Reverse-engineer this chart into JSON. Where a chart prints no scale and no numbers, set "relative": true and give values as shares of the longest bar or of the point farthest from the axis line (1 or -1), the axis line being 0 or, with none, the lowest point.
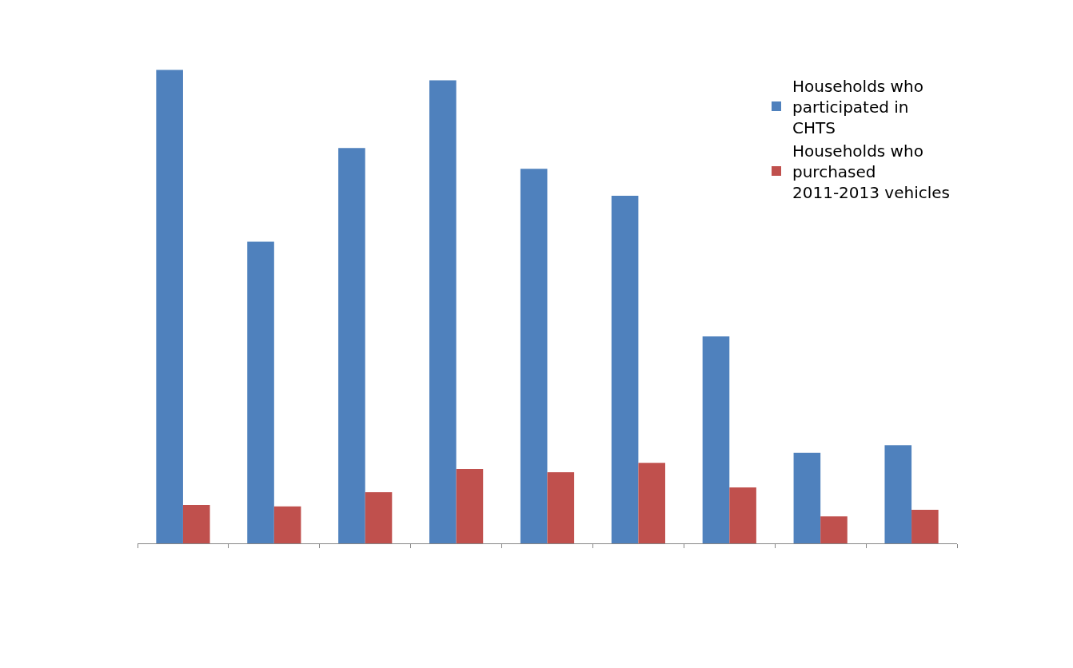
{
  "chart_data": {
    "type": "bar",
    "relative": true,
    "categories": [
      null,
      null,
      null,
      null,
      null,
      null,
      null,
      null,
      null
    ],
    "series": [
      {
        "name": "Households who participated in CHTS",
        "color": "#4f81bd",
        "values": [
          1,
          0.637,
          0.835,
          0.978,
          0.791,
          0.734,
          0.437,
          0.191,
          0.207
        ]
      },
      {
        "name": "Households who purchased 2011-2013 vehicles",
        "color": "#c0504d",
        "values": [
          0.081,
          0.078,
          0.108,
          0.157,
          0.15,
          0.17,
          0.118,
          0.057,
          0.071
        ]
      }
    ],
    "legend": "top right"
  }
}
